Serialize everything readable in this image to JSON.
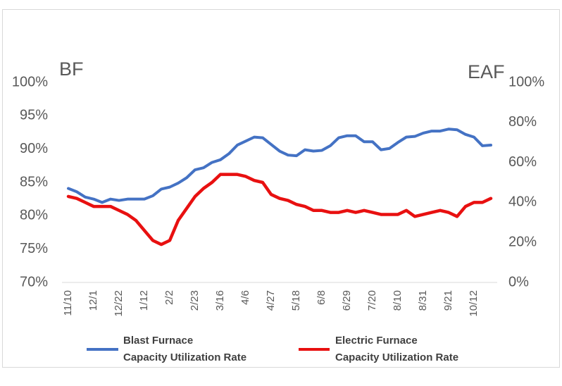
{
  "chart_data": {
    "type": "line",
    "y_label": "BF",
    "y2_label": "EAF",
    "categories": [
      "11/10",
      null,
      null,
      "12/1",
      null,
      null,
      "12/22",
      null,
      null,
      "1/12",
      null,
      null,
      "2/2",
      null,
      null,
      "2/23",
      null,
      null,
      "3/16",
      null,
      null,
      "4/6",
      null,
      null,
      "4/27",
      null,
      null,
      "5/18",
      null,
      null,
      "6/8",
      null,
      null,
      "6/29",
      null,
      null,
      "7/20",
      null,
      null,
      "8/10",
      null,
      null,
      "8/31",
      null,
      null,
      "9/21",
      null,
      null,
      "10/12",
      null,
      null
    ],
    "series": [
      {
        "name": "Blast Furnace\nCapacity Utilization Rate",
        "color": "#4472c4",
        "axis": "y",
        "values": [
          84.1,
          83.6,
          82.8,
          82.5,
          82.0,
          82.5,
          82.3,
          82.5,
          82.5,
          82.5,
          83.0,
          84.0,
          84.3,
          84.9,
          85.7,
          86.9,
          87.2,
          88.0,
          88.4,
          89.3,
          90.6,
          91.2,
          91.8,
          91.7,
          90.7,
          89.7,
          89.1,
          89.0,
          89.9,
          89.7,
          89.8,
          90.5,
          91.7,
          92.0,
          92.0,
          91.1,
          91.1,
          89.9,
          90.1,
          91.0,
          91.8,
          91.9,
          92.4,
          92.7,
          92.7,
          93.0,
          92.9,
          92.2,
          91.8,
          90.5,
          90.6
        ]
      },
      {
        "name": "Electric Furnace\nCapacity Utilization Rate",
        "color": "#e81010",
        "axis": "y2",
        "values": [
          43,
          42,
          40,
          38,
          38,
          38,
          36,
          34,
          31,
          26,
          21,
          19,
          21,
          31,
          37,
          43,
          47,
          50,
          54,
          54,
          54,
          53,
          51,
          50,
          44,
          42,
          41,
          39,
          38,
          36,
          36,
          35,
          35,
          36,
          35,
          36,
          35,
          34,
          34,
          34,
          36,
          33,
          34,
          35,
          36,
          35,
          33,
          38,
          40,
          40,
          42
        ]
      }
    ],
    "ylim": [
      70,
      100
    ],
    "yticks": [
      {
        "value": 70,
        "label": "70%"
      },
      {
        "value": 75,
        "label": "75%"
      },
      {
        "value": 80,
        "label": "80%"
      },
      {
        "value": 85,
        "label": "85%"
      },
      {
        "value": 90,
        "label": "90%"
      },
      {
        "value": 95,
        "label": "95%"
      },
      {
        "value": 100,
        "label": "100%"
      }
    ],
    "y2lim": [
      0,
      100
    ],
    "y2ticks": [
      {
        "value": 0,
        "label": "0%"
      },
      {
        "value": 20,
        "label": "20%"
      },
      {
        "value": 40,
        "label": "40%"
      },
      {
        "value": 60,
        "label": "60%"
      },
      {
        "value": 80,
        "label": "80%"
      },
      {
        "value": 100,
        "label": "100%"
      }
    ],
    "grid": false
  }
}
